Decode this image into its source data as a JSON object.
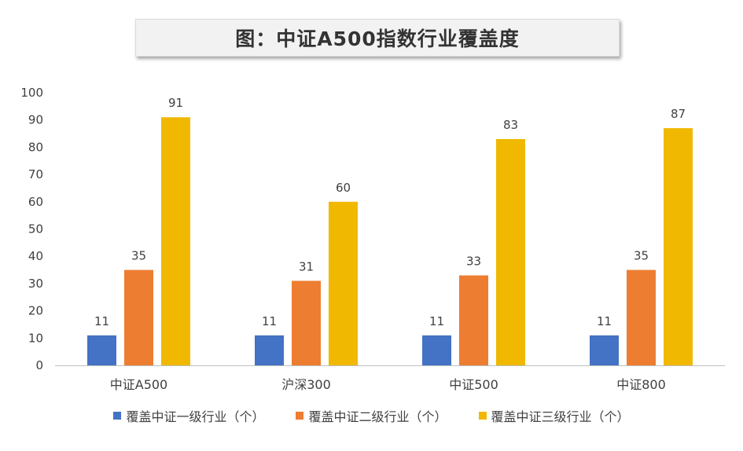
{
  "chart_data": {
    "type": "bar",
    "title": "图：中证A500指数行业覆盖度",
    "categories": [
      "中证A500",
      "沪深300",
      "中证500",
      "中证800"
    ],
    "series": [
      {
        "name": "覆盖中证一级行业（个）",
        "color": "#4472c4",
        "values": [
          11,
          11,
          11,
          11
        ]
      },
      {
        "name": "覆盖中证二级行业（个）",
        "color": "#ed7d31",
        "values": [
          35,
          31,
          33,
          35
        ]
      },
      {
        "name": "覆盖中证三级行业（个）",
        "color": "#f0b800",
        "values": [
          91,
          60,
          83,
          87
        ]
      }
    ],
    "ylim": [
      0,
      100
    ],
    "yticks": [
      0,
      10,
      20,
      30,
      40,
      50,
      60,
      70,
      80,
      90,
      100
    ],
    "grid": false,
    "data_labels": true,
    "legend": "bottom"
  }
}
